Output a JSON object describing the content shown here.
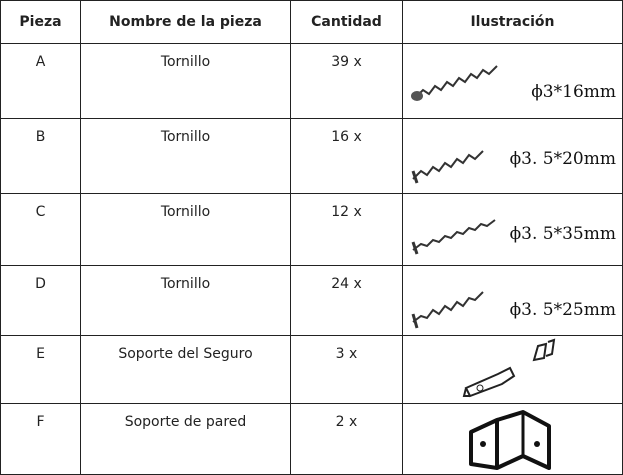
{
  "table": {
    "header": [
      "Pieza",
      "Nombre de la pieza",
      "Cantidad",
      "Ilustración"
    ],
    "rows": [
      {
        "pieza": "A",
        "nombre": "Tornillo",
        "cantidad": "39 x",
        "medida": "ϕ3*16mm"
      },
      {
        "pieza": "B",
        "nombre": "Tornillo",
        "cantidad": "16 x",
        "medida": "ϕ3. 5*20mm"
      },
      {
        "pieza": "C",
        "nombre": "Tornillo",
        "cantidad": "12 x",
        "medida": "ϕ3. 5*35mm"
      },
      {
        "pieza": "D",
        "nombre": "Tornillo",
        "cantidad": "24 x",
        "medida": "ϕ3. 5*25mm"
      },
      {
        "pieza": "E",
        "nombre": "Soporte del Seguro",
        "cantidad": "3 x"
      },
      {
        "pieza": "F",
        "nombre": "Soporte de pared",
        "cantidad": "2 x"
      }
    ]
  }
}
